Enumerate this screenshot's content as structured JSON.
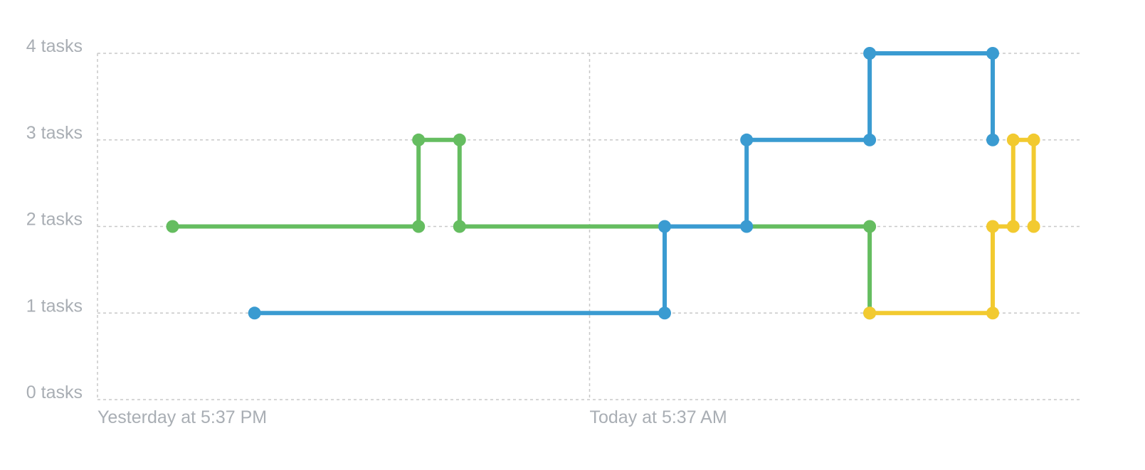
{
  "chart_data": {
    "type": "line",
    "step": true,
    "title": "",
    "xlabel": "",
    "ylabel": "",
    "x_unit": "hours relative to Yesterday at 5:37 PM",
    "xlim": [
      0,
      24
    ],
    "ylim": [
      0,
      4
    ],
    "y_ticks": [
      {
        "value": 0,
        "label": "0 tasks"
      },
      {
        "value": 1,
        "label": "1 tasks"
      },
      {
        "value": 2,
        "label": "2 tasks"
      },
      {
        "value": 3,
        "label": "3 tasks"
      },
      {
        "value": 4,
        "label": "4 tasks"
      }
    ],
    "x_ticks": [
      {
        "value": 0,
        "label": "Yesterday at 5:37 PM"
      },
      {
        "value": 12,
        "label": "Today at 5:37 AM"
      }
    ],
    "grid": true,
    "series": [
      {
        "color": "#65bd60",
        "points": [
          [
            1.83,
            2
          ],
          [
            7.83,
            2
          ],
          [
            7.83,
            3
          ],
          [
            8.83,
            3
          ],
          [
            8.83,
            2
          ],
          [
            18.83,
            2
          ],
          [
            18.83,
            1
          ]
        ]
      },
      {
        "color": "#3a9bd1",
        "points": [
          [
            3.83,
            1
          ],
          [
            13.83,
            1
          ],
          [
            13.83,
            2
          ],
          [
            15.83,
            2
          ],
          [
            15.83,
            3
          ],
          [
            18.83,
            3
          ],
          [
            18.83,
            4
          ],
          [
            21.83,
            4
          ],
          [
            21.83,
            3
          ]
        ]
      },
      {
        "color": "#f2ca30",
        "points": [
          [
            18.83,
            1
          ],
          [
            21.83,
            1
          ],
          [
            21.83,
            2
          ],
          [
            22.33,
            2
          ],
          [
            22.33,
            3
          ],
          [
            22.83,
            3
          ],
          [
            22.83,
            2
          ]
        ]
      }
    ]
  }
}
